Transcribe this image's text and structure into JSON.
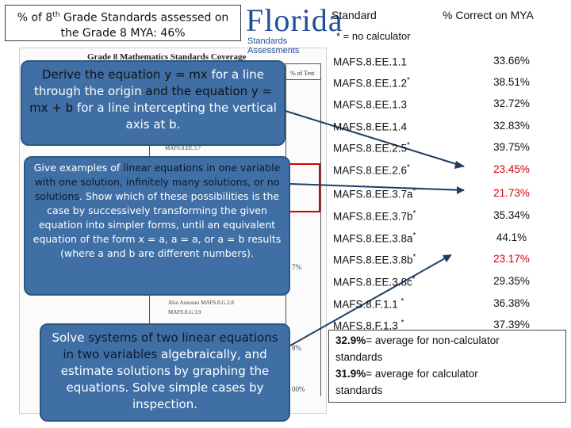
{
  "title_box": {
    "line1_pre": "% of 8",
    "line1_sup": "th",
    "line1_post": " Grade Standards assessed on",
    "line2": "the Grade 8 MYA:  46%"
  },
  "logo": {
    "word": "Florida",
    "sub": "Standards Assessments"
  },
  "document": {
    "title": "Grade 8 Mathematics Standards Coverage",
    "col_header": "% of Test",
    "fragments": [
      "MAFS.8.EE.3.7",
      "Also Assesses MAFS.8.G.2.8",
      "MAFS.8.G.3.9",
      "7%",
      "8%",
      "00%"
    ]
  },
  "callouts": {
    "c1": {
      "p1": "Derive the equation y = mx",
      "p2": " for a line through the origin ",
      "p3": "and the equation",
      "p4": " y = mx + b",
      "p5": " for a line intercepting the vertical axis at b."
    },
    "c2": {
      "p1": "Give examples of ",
      "p2": "linear equations in one variable with one solution, infinitely many solutions, or no solutions",
      "p3": ". Show which of these possibilities is the case by successively transforming the given equation into simpler forms, until an equivalent equation of the form x = a, a = a, or a = b results (where a and b are different numbers)."
    },
    "c3": {
      "p1": "Solve ",
      "p2": "systems of two linear equations in two variables",
      "p3": " algebraically, and estimate solutions by graphing the equations. Solve simple cases by inspection."
    }
  },
  "table": {
    "header_standard": "Standard",
    "header_correct": "% Correct on MYA",
    "note": "* = no calculator",
    "rows": [
      {
        "code": "MAFS.8.EE.1.1",
        "star": "",
        "value": "33.66%",
        "red": false
      },
      {
        "code": "MAFS.8.EE.1.2",
        "star": "*",
        "value": "38.51%",
        "red": false
      },
      {
        "code": "MAFS.8.EE.1.3",
        "star": "",
        "value": "32.72%",
        "red": false
      },
      {
        "code": "MAFS.8.EE.1.4",
        "star": "",
        "value": "32.83%",
        "red": false
      },
      {
        "code": "MAFS.8.EE.2.5",
        "star": "*",
        "value": "39.75%",
        "red": false
      },
      {
        "code": "MAFS.8.EE.2.6",
        "star": "*",
        "value": "23.45%",
        "red": true
      },
      {
        "code": "MAFS.8.EE.3.7a",
        "star": "*",
        "value": "21.73%",
        "red": true
      },
      {
        "code": "MAFS.8.EE.3.7b",
        "star": "*",
        "value": "35.34%",
        "red": false
      },
      {
        "code": "MAFS.8.EE.3.8a",
        "star": "*",
        "value": "44.1%",
        "red": false
      },
      {
        "code": "MAFS.8.EE.3.8b",
        "star": "*",
        "value": "23.17%",
        "red": true
      },
      {
        "code": "MAFS.8.EE.3.8c",
        "star": "*",
        "value": "29.35%",
        "red": false
      },
      {
        "code": "MAFS.8.F.1.1 ",
        "star": "*",
        "value": "36.38%",
        "red": false
      },
      {
        "code": "MAFS.8.F.1.3 ",
        "star": "*",
        "value": "37.39%",
        "red": false
      }
    ]
  },
  "averages": {
    "line1_bold": "32.9%",
    "line1_rest": "= average for non-calculator",
    "line2": "standards",
    "line3_bold": "31.9%",
    "line3_rest": "= average for calculator",
    "line4": "standards"
  },
  "colors": {
    "callout_bg": "#3f6fa5",
    "red_value": "#d40000",
    "logo_blue": "#1f4e9a",
    "highlight_yellow": "#ffd24a"
  }
}
